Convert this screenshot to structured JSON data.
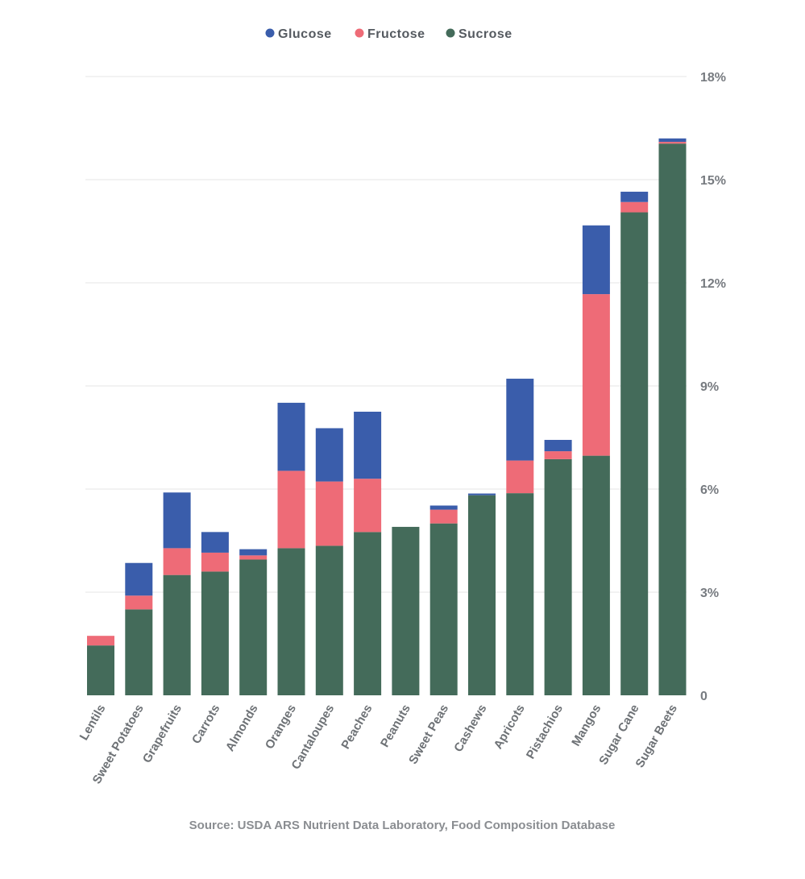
{
  "chart_data": {
    "type": "bar",
    "stacked": true,
    "categories": [
      "Lentils",
      "Sweet Potatoes",
      "Grapefruits",
      "Carrots",
      "Almonds",
      "Oranges",
      "Cantaloupes",
      "Peaches",
      "Peanuts",
      "Sweet Peas",
      "Cashews",
      "Apricots",
      "Pistachios",
      "Mangos",
      "Sugar Cane",
      "Sugar Beets"
    ],
    "series": [
      {
        "name": "Sucrose",
        "color": "#446b5a",
        "values": [
          1.45,
          2.5,
          3.5,
          3.6,
          3.95,
          4.28,
          4.35,
          4.75,
          4.9,
          5.0,
          5.82,
          5.88,
          6.87,
          6.97,
          14.05,
          16.05
        ]
      },
      {
        "name": "Fructose",
        "color": "#ee6b77",
        "values": [
          0.28,
          0.4,
          0.78,
          0.55,
          0.12,
          2.25,
          1.87,
          1.55,
          0.0,
          0.4,
          0.0,
          0.95,
          0.23,
          4.7,
          0.3,
          0.05
        ]
      },
      {
        "name": "Glucose",
        "color": "#3a5dab",
        "values": [
          0.0,
          0.95,
          1.62,
          0.6,
          0.18,
          1.98,
          1.55,
          1.95,
          0.0,
          0.12,
          0.05,
          2.38,
          0.33,
          2.0,
          0.3,
          0.1
        ]
      }
    ],
    "legend": {
      "order": [
        "Glucose",
        "Fructose",
        "Sucrose"
      ],
      "position": "top-center"
    },
    "y_axis": {
      "position": "right",
      "ylim": [
        0,
        18
      ],
      "tick_values": [
        0,
        3,
        6,
        9,
        12,
        15,
        18
      ],
      "tick_labels": [
        "0",
        "3%",
        "6%",
        "9%",
        "12%",
        "15%",
        "18%"
      ]
    },
    "grid": true,
    "title": "",
    "xlabel": "",
    "ylabel": ""
  },
  "source": "Source: USDA ARS Nutrient Data Laboratory, Food Composition Database"
}
